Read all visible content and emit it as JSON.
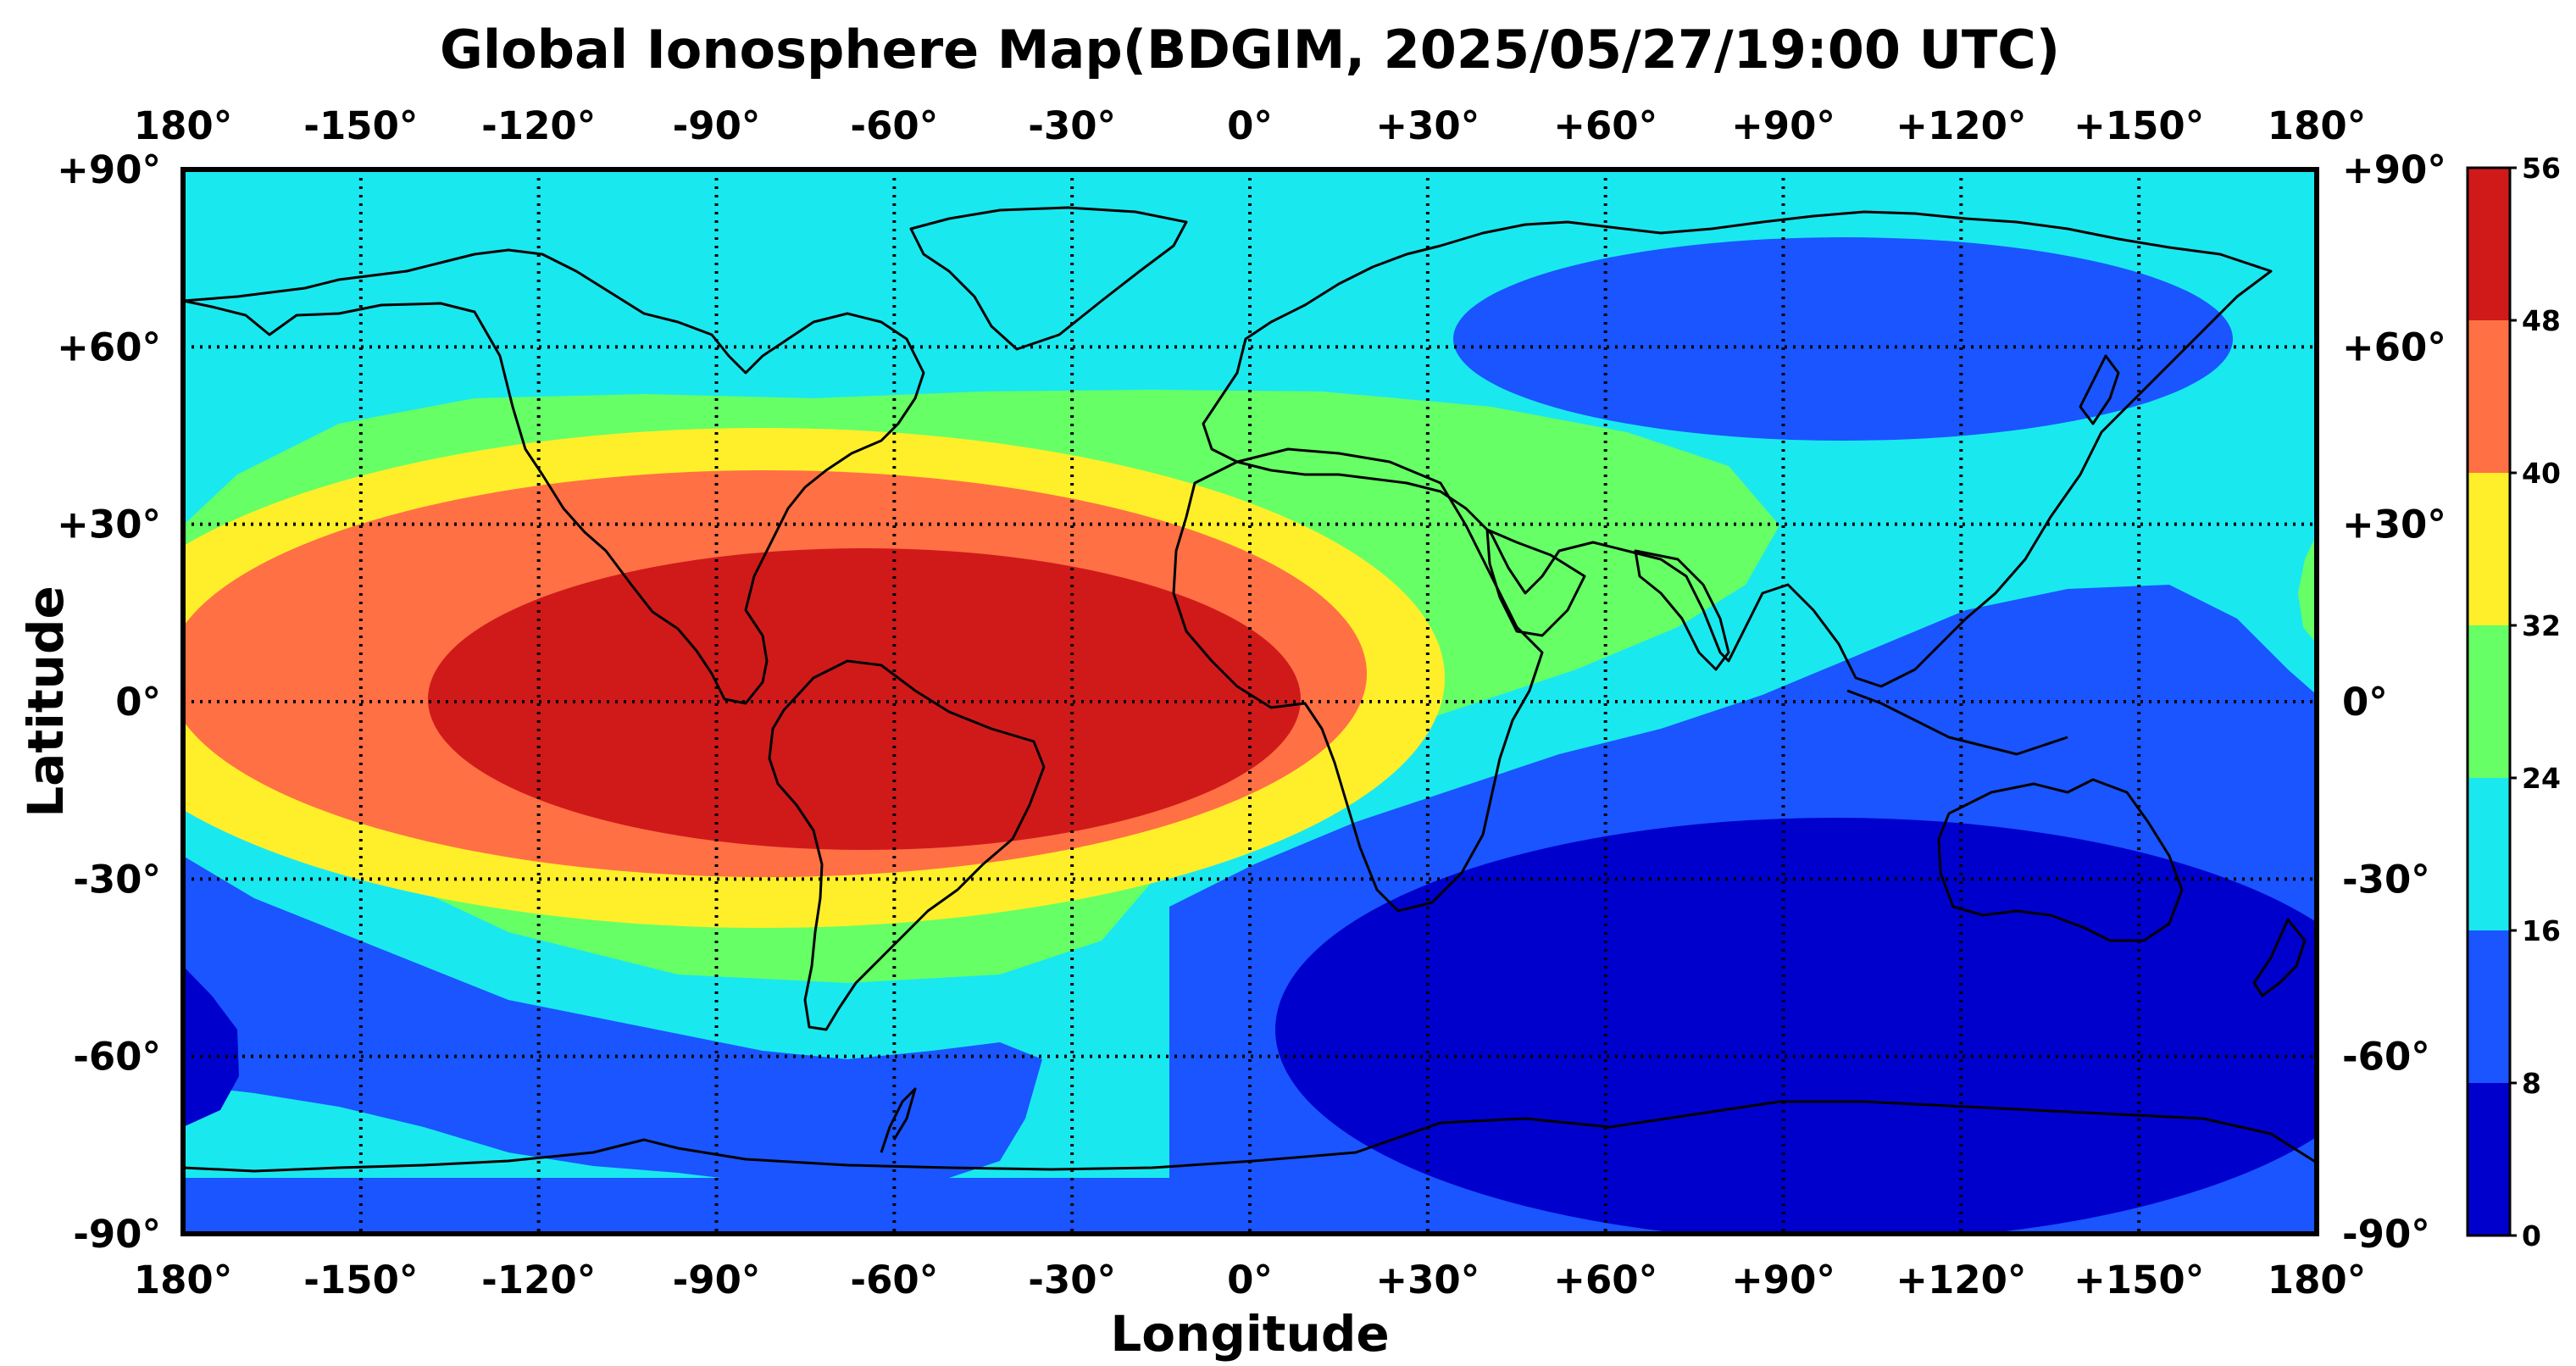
{
  "title": "Global Ionosphere Map(BDGIM, 2025/05/27/19:00 UTC)",
  "xlabel": "Longitude",
  "ylabel": "Latitude",
  "lon_ticks": [
    "180°",
    "-150°",
    "-120°",
    "-90°",
    "-60°",
    "-30°",
    "0°",
    "+30°",
    "+60°",
    "+90°",
    "+120°",
    "+150°",
    "180°"
  ],
  "lat_ticks": [
    "+90°",
    "+60°",
    "+30°",
    "0°",
    "-30°",
    "-60°",
    "-90°"
  ],
  "colorbar": {
    "ticks": [
      "56",
      "48",
      "40",
      "32",
      "24",
      "16",
      "8",
      "0"
    ],
    "levels": [
      0,
      8,
      16,
      24,
      32,
      40,
      48,
      56
    ],
    "colors": [
      "#0000cd",
      "#1a55ff",
      "#1ae8ef",
      "#66ff66",
      "#ffef2a",
      "#ff7045",
      "#d01a1a"
    ]
  },
  "chart_data": {
    "type": "heatmap",
    "title": "Global Ionosphere Map(BDGIM, 2025/05/27/19:00 UTC)",
    "xlabel": "Longitude",
    "ylabel": "Latitude",
    "xlim": [
      -180,
      180
    ],
    "ylim": [
      -90,
      90
    ],
    "grid": true,
    "grid_step_deg": 30,
    "colorbar_range": [
      0,
      56
    ],
    "colorbar_step": 8,
    "field_features": [
      {
        "feature": "equatorial anomaly maximum",
        "lon": -65,
        "lat": 0,
        "value_range": [
          48,
          56
        ]
      },
      {
        "feature": "northern Eurasia minimum",
        "lon": 100,
        "lat": 67,
        "value_range": [
          8,
          16
        ]
      },
      {
        "feature": "southern Indian Ocean / Australia minimum",
        "lon": 120,
        "lat": -55,
        "value_range": [
          0,
          8
        ]
      },
      {
        "feature": "south-west Pacific minimum",
        "lon": -178,
        "lat": -62,
        "value_range": [
          0,
          8
        ]
      },
      {
        "feature": "south Pacific band",
        "lon": -120,
        "lat": -70,
        "value_range": [
          8,
          16
        ]
      },
      {
        "feature": "western Pacific edge",
        "lon": 178,
        "lat": 15,
        "value_range": [
          24,
          32
        ]
      }
    ]
  }
}
